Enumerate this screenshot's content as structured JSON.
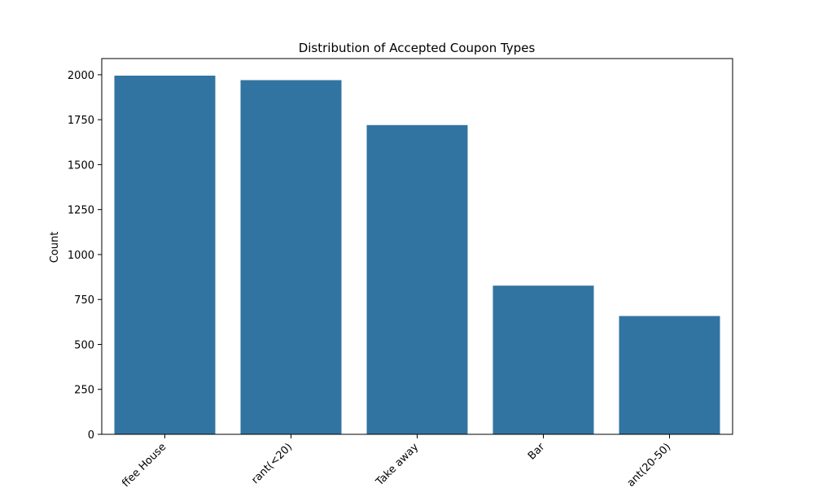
{
  "chart_data": {
    "type": "bar",
    "title": "Distribution of Accepted Coupon Types",
    "y_label": "Count",
    "categories": [
      "ffee House",
      "rant(<20)",
      "Take away",
      "Bar",
      "ant(20-50)"
    ],
    "values": [
      1995,
      1970,
      1720,
      827,
      658
    ],
    "color": "#3274a1",
    "ylim": [
      0,
      2090
    ],
    "yticks": [
      0,
      250,
      500,
      750,
      1000,
      1250,
      1500,
      1750,
      2000
    ],
    "grid": false
  }
}
